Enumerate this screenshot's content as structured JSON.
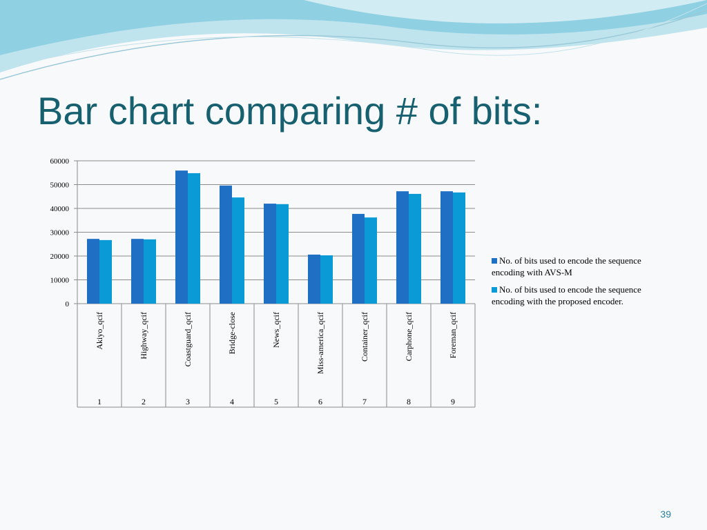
{
  "slide": {
    "title": "Bar chart comparing # of bits:",
    "page_number": "39"
  },
  "chart_data": {
    "type": "bar",
    "categories": [
      "Akiyo_qcif",
      "Highway_qcif",
      "Coastguard_qcif",
      "Bridge-close",
      "News_qcif",
      "Miss-america_qcif",
      "Container_qcif",
      "Carphone_qcif",
      "Foreman_qcif"
    ],
    "category_numbers": [
      1,
      2,
      3,
      4,
      5,
      6,
      7,
      8,
      9
    ],
    "series": [
      {
        "name": "No. of bits used to encode the sequence encoding with AVS-M",
        "color": "#1f6fc5",
        "values": [
          27200,
          27200,
          55900,
          49600,
          42000,
          20600,
          37700,
          47200,
          47200
        ]
      },
      {
        "name": "No. of bits used to encode the sequence encoding with the proposed encoder.",
        "color": "#0a9bd6",
        "values": [
          26700,
          27000,
          54800,
          44600,
          41800,
          20300,
          36200,
          46100,
          46700
        ]
      }
    ],
    "ylim": [
      0,
      60000
    ],
    "yticks": [
      0,
      10000,
      20000,
      30000,
      40000,
      50000,
      60000
    ],
    "grid": true,
    "legend": "right"
  }
}
